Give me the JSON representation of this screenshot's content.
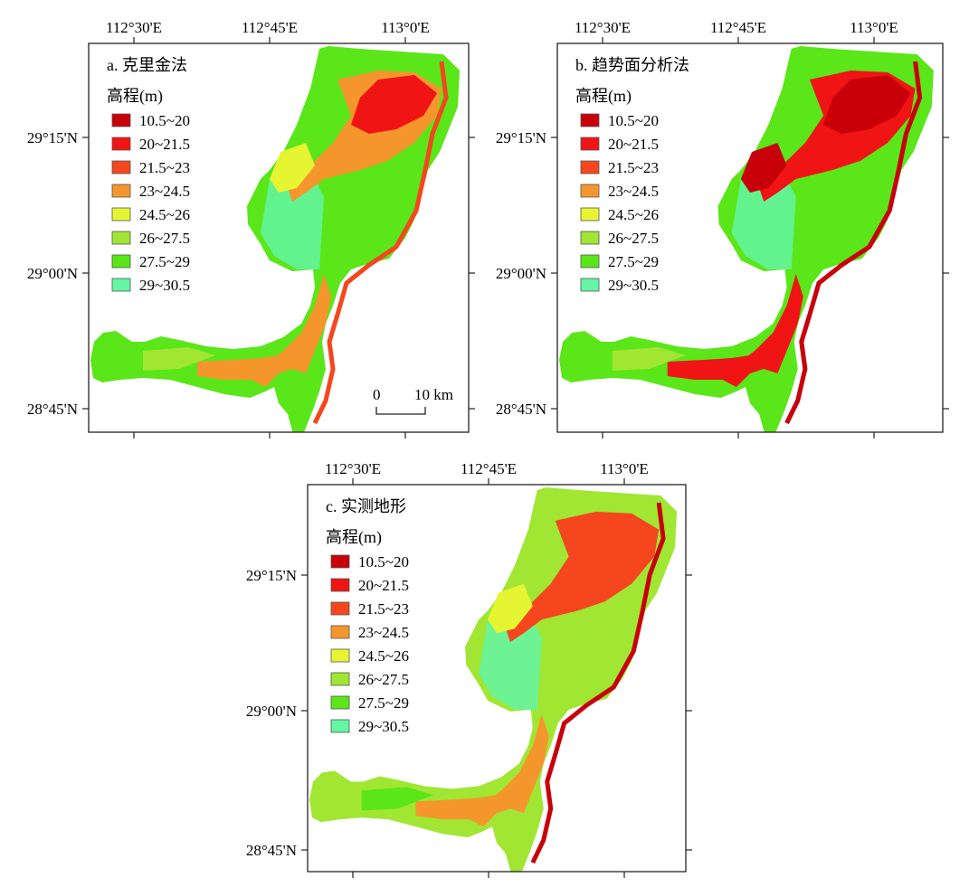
{
  "legend": {
    "title": "高程(m)",
    "classes": [
      {
        "label": "10.5~20",
        "color": "#c8000a"
      },
      {
        "label": "20~21.5",
        "color": "#f01414"
      },
      {
        "label": "21.5~23",
        "color": "#f5461e"
      },
      {
        "label": "23~24.5",
        "color": "#f5962d"
      },
      {
        "label": "24.5~26",
        "color": "#e6f532"
      },
      {
        "label": "26~27.5",
        "color": "#a0e632"
      },
      {
        "label": "27.5~29",
        "color": "#5ae619"
      },
      {
        "label": "29~30.5",
        "color": "#64f5a5"
      }
    ]
  },
  "axes": {
    "lon_labels": [
      "112°30'E",
      "112°45'E",
      "113°0'E"
    ],
    "lat_labels": [
      "29°15'N",
      "29°00'N",
      "28°45'N"
    ]
  },
  "panels": [
    {
      "id": "a",
      "title": "a. 克里金法"
    },
    {
      "id": "b",
      "title": "b. 趋势面分析法"
    },
    {
      "id": "c",
      "title": "c. 实测地形"
    }
  ],
  "scale_bar": {
    "start": "0",
    "end": "10 km"
  }
}
